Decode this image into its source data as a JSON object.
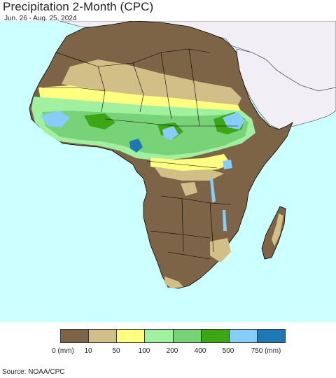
{
  "title": "Precipitation 2-Month (CPC)",
  "date_range": "Jun. 26 - Aug. 25, 2024",
  "source": "Source: NOAA/CPC",
  "colors": {
    "ocean": "#ccffff",
    "other_land": "#f2eef5",
    "border": "#000000"
  },
  "legend": {
    "colors": [
      "#7d6446",
      "#d2bf87",
      "#ffff80",
      "#a0f0a0",
      "#78d278",
      "#3ca614",
      "#87cdfa",
      "#1e78b4"
    ],
    "ticks": [
      "0 (mm)",
      "10",
      "50",
      "100",
      "200",
      "400",
      "500",
      "750 (mm)"
    ]
  }
}
